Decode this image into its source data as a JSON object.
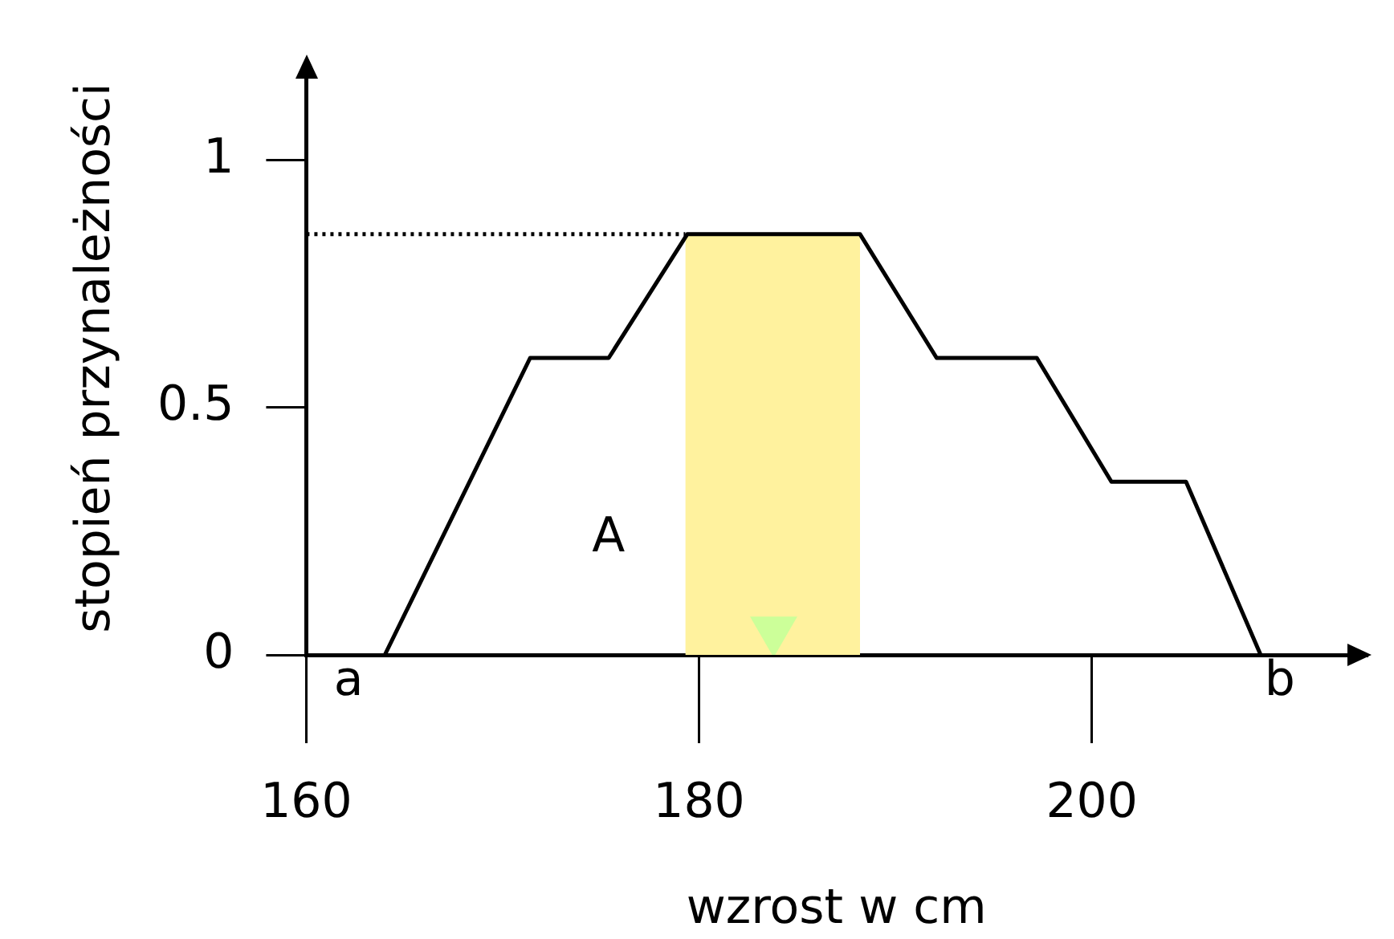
{
  "chart_data": {
    "type": "line",
    "xlabel": "wzrost w cm",
    "ylabel": "stopień przynależności",
    "xlim": [
      160,
      214
    ],
    "xticks": [
      160,
      180,
      200
    ],
    "ylim": [
      0,
      1.2
    ],
    "yticks": [
      0,
      0.5,
      1
    ],
    "grid": false,
    "legend": false,
    "series": [
      {
        "type": "area",
        "color": "#fff29e",
        "x": [
          179.3,
          188.2
        ],
        "values": [
          0.85,
          0.85
        ]
      },
      {
        "color": "#000000",
        "marker": "none",
        "x": [
          164,
          171.4,
          175.4,
          179.4,
          188.2,
          192.1,
          197.2,
          201,
          204.8,
          208.6
        ],
        "values": [
          0,
          0.6,
          0.6,
          0.85,
          0.85,
          0.6,
          0.6,
          0.35,
          0.35,
          0
        ]
      },
      {
        "type": "line",
        "color": "#000000",
        "line_style": "dotted",
        "marker": "none",
        "x": [
          160,
          179.3
        ],
        "values": [
          0.85,
          0.85
        ]
      },
      {
        "type": "scatter",
        "color": "#ccff99",
        "marker": "triangle",
        "x": [
          183.8
        ],
        "values": [
          0.05
        ]
      }
    ],
    "annotations": [
      "A",
      "a",
      "b"
    ]
  }
}
